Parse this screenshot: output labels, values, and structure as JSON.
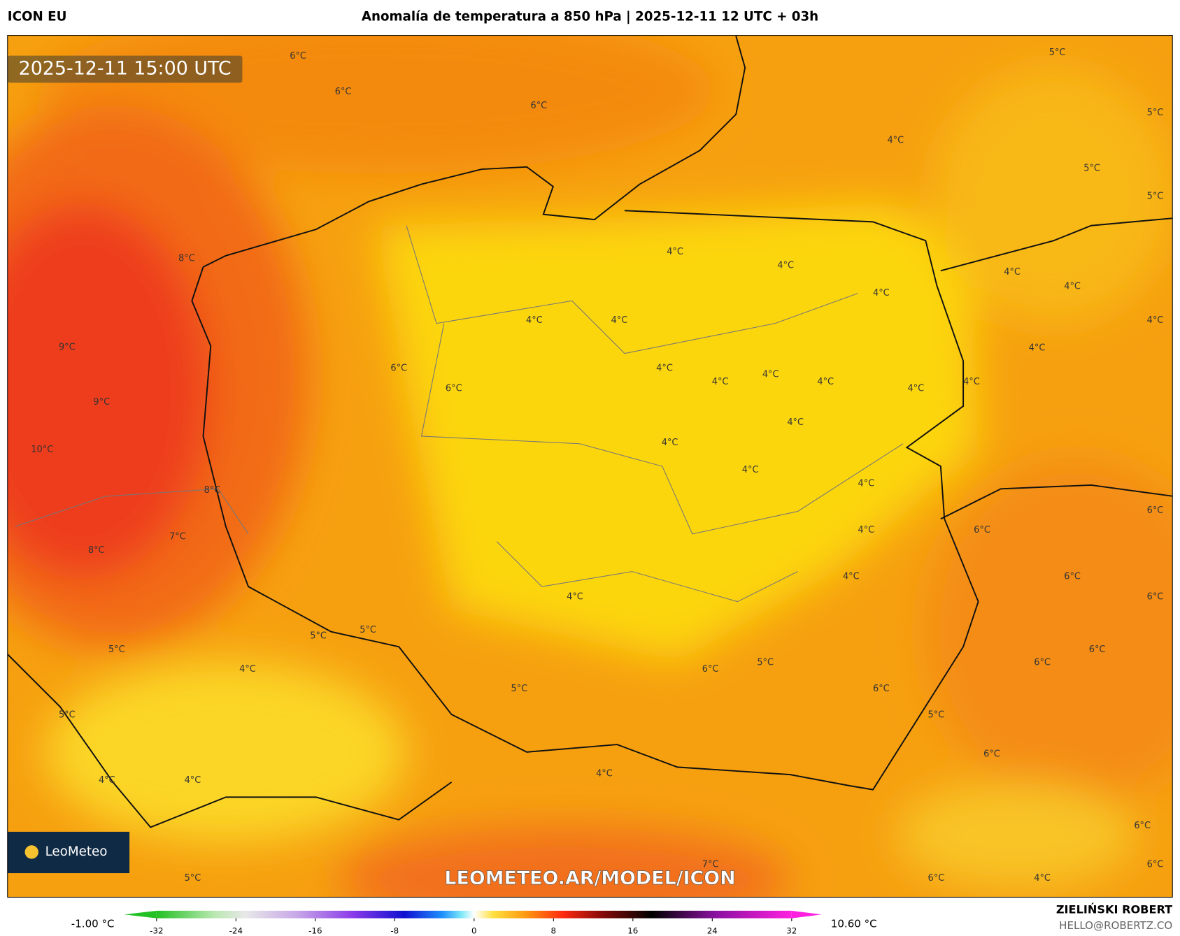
{
  "header": {
    "model": "ICON EU",
    "title": "Anomalía de temperatura a 850 hPa | 2025-12-11 12 UTC + 03h"
  },
  "map": {
    "timestamp": "2025-12-11 15:00 UTC",
    "watermark": "LEOMETEO.AR/MODEL/ICON",
    "logo": "LeoMeteo",
    "contour_labels": [
      "6°C",
      "6°C",
      "6°C",
      "5°C",
      "5°C",
      "4°C",
      "5°C",
      "5°C",
      "8°C",
      "4°C",
      "4°C",
      "4°C",
      "4°C",
      "4°C",
      "4°C",
      "4°C",
      "4°C",
      "9°C",
      "4°C",
      "6°C",
      "4°C",
      "4°C",
      "4°C",
      "4°C",
      "4°C",
      "6°C",
      "4°C",
      "9°C",
      "4°C",
      "10°C",
      "4°C",
      "4°C",
      "4°C",
      "8°C",
      "6°C",
      "4°C",
      "6°C",
      "7°C",
      "8°C",
      "4°C",
      "6°C",
      "6°C",
      "4°C",
      "5°C",
      "5°C",
      "5°C",
      "6°C",
      "4°C",
      "6°C",
      "5°C",
      "6°C",
      "5°C",
      "6°C",
      "5°C",
      "5°C",
      "6°C",
      "4°C",
      "4°C",
      "4°C",
      "6°C",
      "7°C",
      "6°C",
      "5°C",
      "6°C",
      "4°C"
    ]
  },
  "colorbar": {
    "min_label": "-1.00 °C",
    "max_label": "10.60 °C",
    "range": [
      -32,
      32
    ],
    "ticks": [
      -32,
      -24,
      -16,
      -8,
      0,
      8,
      16,
      24,
      32
    ]
  },
  "footer": {
    "author": "ZIELIŃSKI ROBERT",
    "contact": "HELLO@ROBERTZ.CO"
  }
}
